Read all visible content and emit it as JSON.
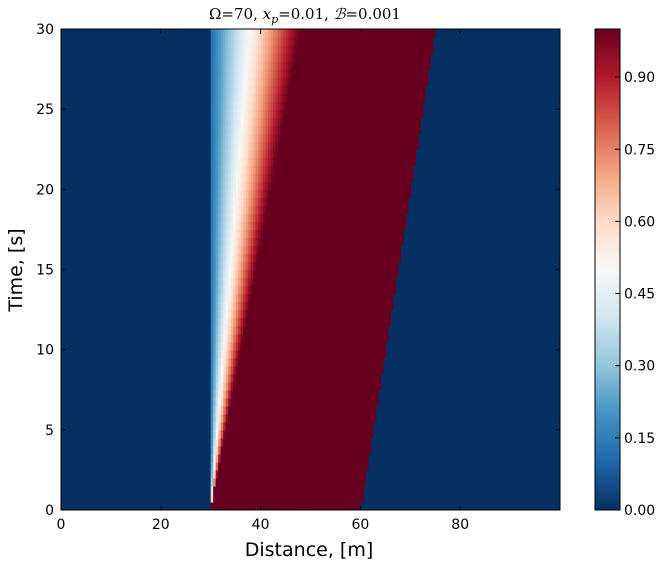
{
  "chart_data": {
    "type": "heatmap",
    "title": "Ω=70, x_p=0.01, ℬ=0.001",
    "title_parts": {
      "omega": "Ω=70",
      "xp_sym": "x",
      "xp_sub": "p",
      "xp_val": "=0.01",
      "b_sym": "ℬ",
      "b_val": "=0.001",
      "sep": ", "
    },
    "xlabel": "Distance, [m]",
    "ylabel": "Time, [s]",
    "xlim": [
      0,
      100
    ],
    "ylim": [
      0,
      30
    ],
    "xticks": [
      0,
      20,
      40,
      60,
      80
    ],
    "yticks": [
      0,
      5,
      10,
      15,
      20,
      25,
      30
    ],
    "colorbar": {
      "range": [
        0,
        1
      ],
      "colormap": "RdBu_r",
      "ticks": [
        "0.00",
        "0.15",
        "0.30",
        "0.45",
        "0.60",
        "0.75",
        "0.90"
      ],
      "tick_values": [
        0.0,
        0.15,
        0.3,
        0.45,
        0.6,
        0.75,
        0.9
      ]
    },
    "field_regions": {
      "front_left_x": 30,
      "saturated_band_left_at_t0": 30,
      "saturated_band_left_at_t30": 48,
      "saturated_band_right_at_t0": 60,
      "saturated_band_right_at_t30": 75,
      "transition_left_edge_at_t30": 30,
      "background_value": 0.0,
      "saturated_value": 1.0
    },
    "grid": false
  }
}
